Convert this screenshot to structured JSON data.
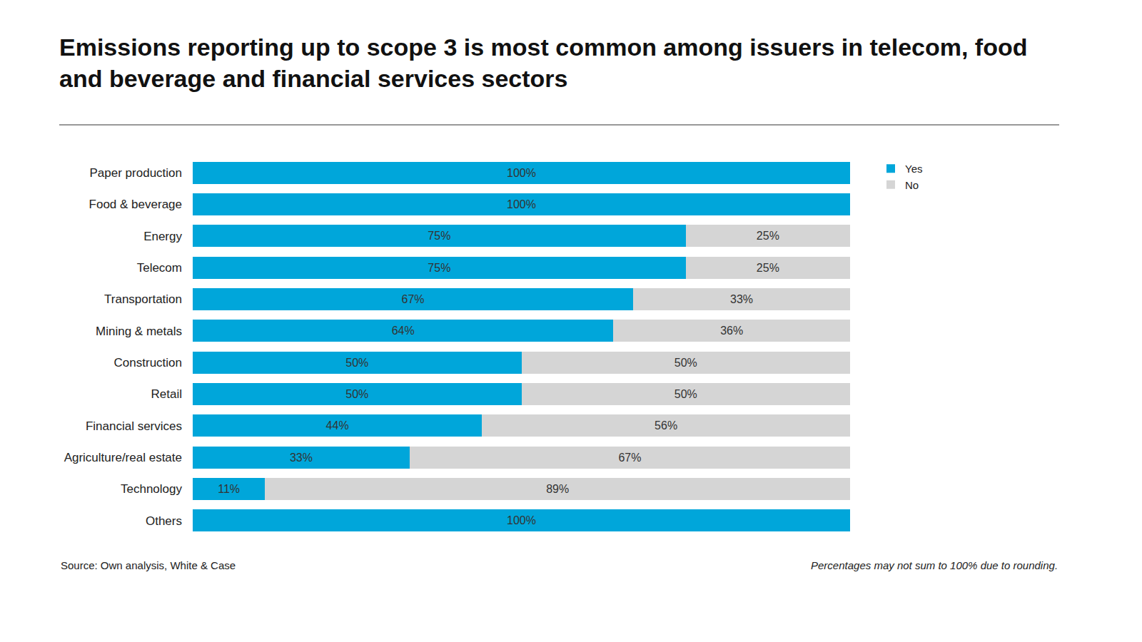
{
  "chart_data": {
    "type": "bar",
    "title": "Emissions reporting up to scope 3 is most common among issuers in telecom, food and beverage and financial services sectors",
    "annotations": [
      "Source: Own analysis, White & Case",
      "Percentages may not sum to 100% due to rounding."
    ],
    "orientation": "horizontal",
    "stacked": true,
    "data_labels": true,
    "tick_labels": "y",
    "grid": false,
    "legend": "top right",
    "xlim": [
      0,
      100
    ],
    "categories": [
      "Paper production",
      "Food & beverage",
      "Energy",
      "Telecom",
      "Transportation",
      "Mining & metals",
      "Construction",
      "Retail",
      "Financial services",
      "Agriculture/real estate",
      "Technology",
      "Others"
    ],
    "series": [
      {
        "name": "Yes",
        "color": "#00a6da",
        "values": [
          100,
          100,
          75,
          75,
          67,
          64,
          50,
          50,
          44,
          33,
          11,
          100
        ],
        "value_labels": [
          "100%",
          "100%",
          "75%",
          "75%",
          "67%",
          "64%",
          "50%",
          "50%",
          "44%",
          "33%",
          "11%",
          "100%"
        ]
      },
      {
        "name": "No",
        "color": "#d5d5d5",
        "values": [
          0,
          0,
          25,
          25,
          33,
          36,
          50,
          50,
          56,
          67,
          89,
          0
        ],
        "value_labels": [
          null,
          null,
          "25%",
          "25%",
          "33%",
          "36%",
          "50%",
          "50%",
          "56%",
          "67%",
          "89%",
          null
        ]
      }
    ]
  }
}
